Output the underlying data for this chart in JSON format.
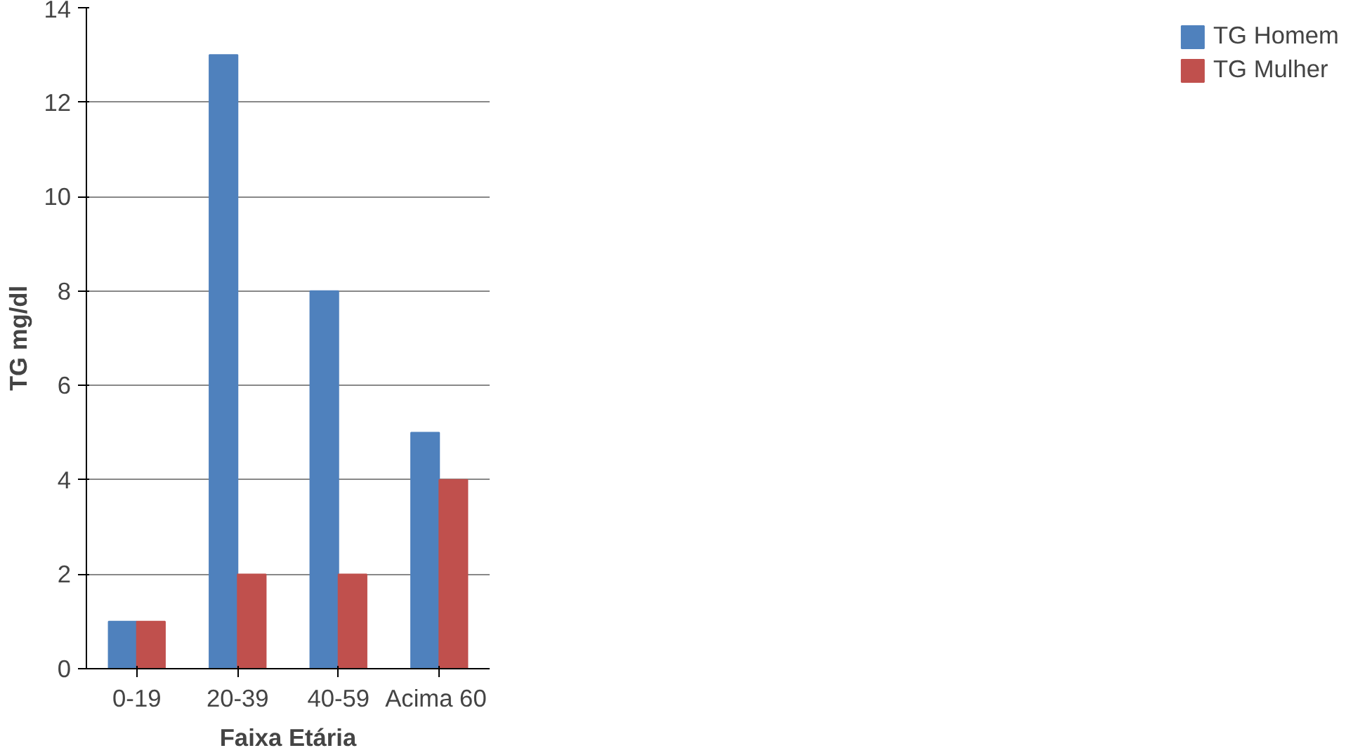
{
  "chart_data": {
    "type": "bar",
    "xlabel": "Faixa Etária",
    "ylabel": "TG mg/dl",
    "categories": [
      "0-19",
      "20-39",
      "40-59",
      "Acima  60"
    ],
    "series": [
      {
        "name": "TG Homem",
        "color": "#4f81bd",
        "values": [
          1,
          13,
          8,
          5
        ]
      },
      {
        "name": "TG Mulher",
        "color": "#c0504d",
        "values": [
          1,
          2,
          2,
          4
        ]
      }
    ],
    "ylim": [
      0,
      14
    ],
    "yticks": [
      0,
      2,
      4,
      6,
      8,
      10,
      12,
      14
    ],
    "grid": "y",
    "legend": "right"
  }
}
